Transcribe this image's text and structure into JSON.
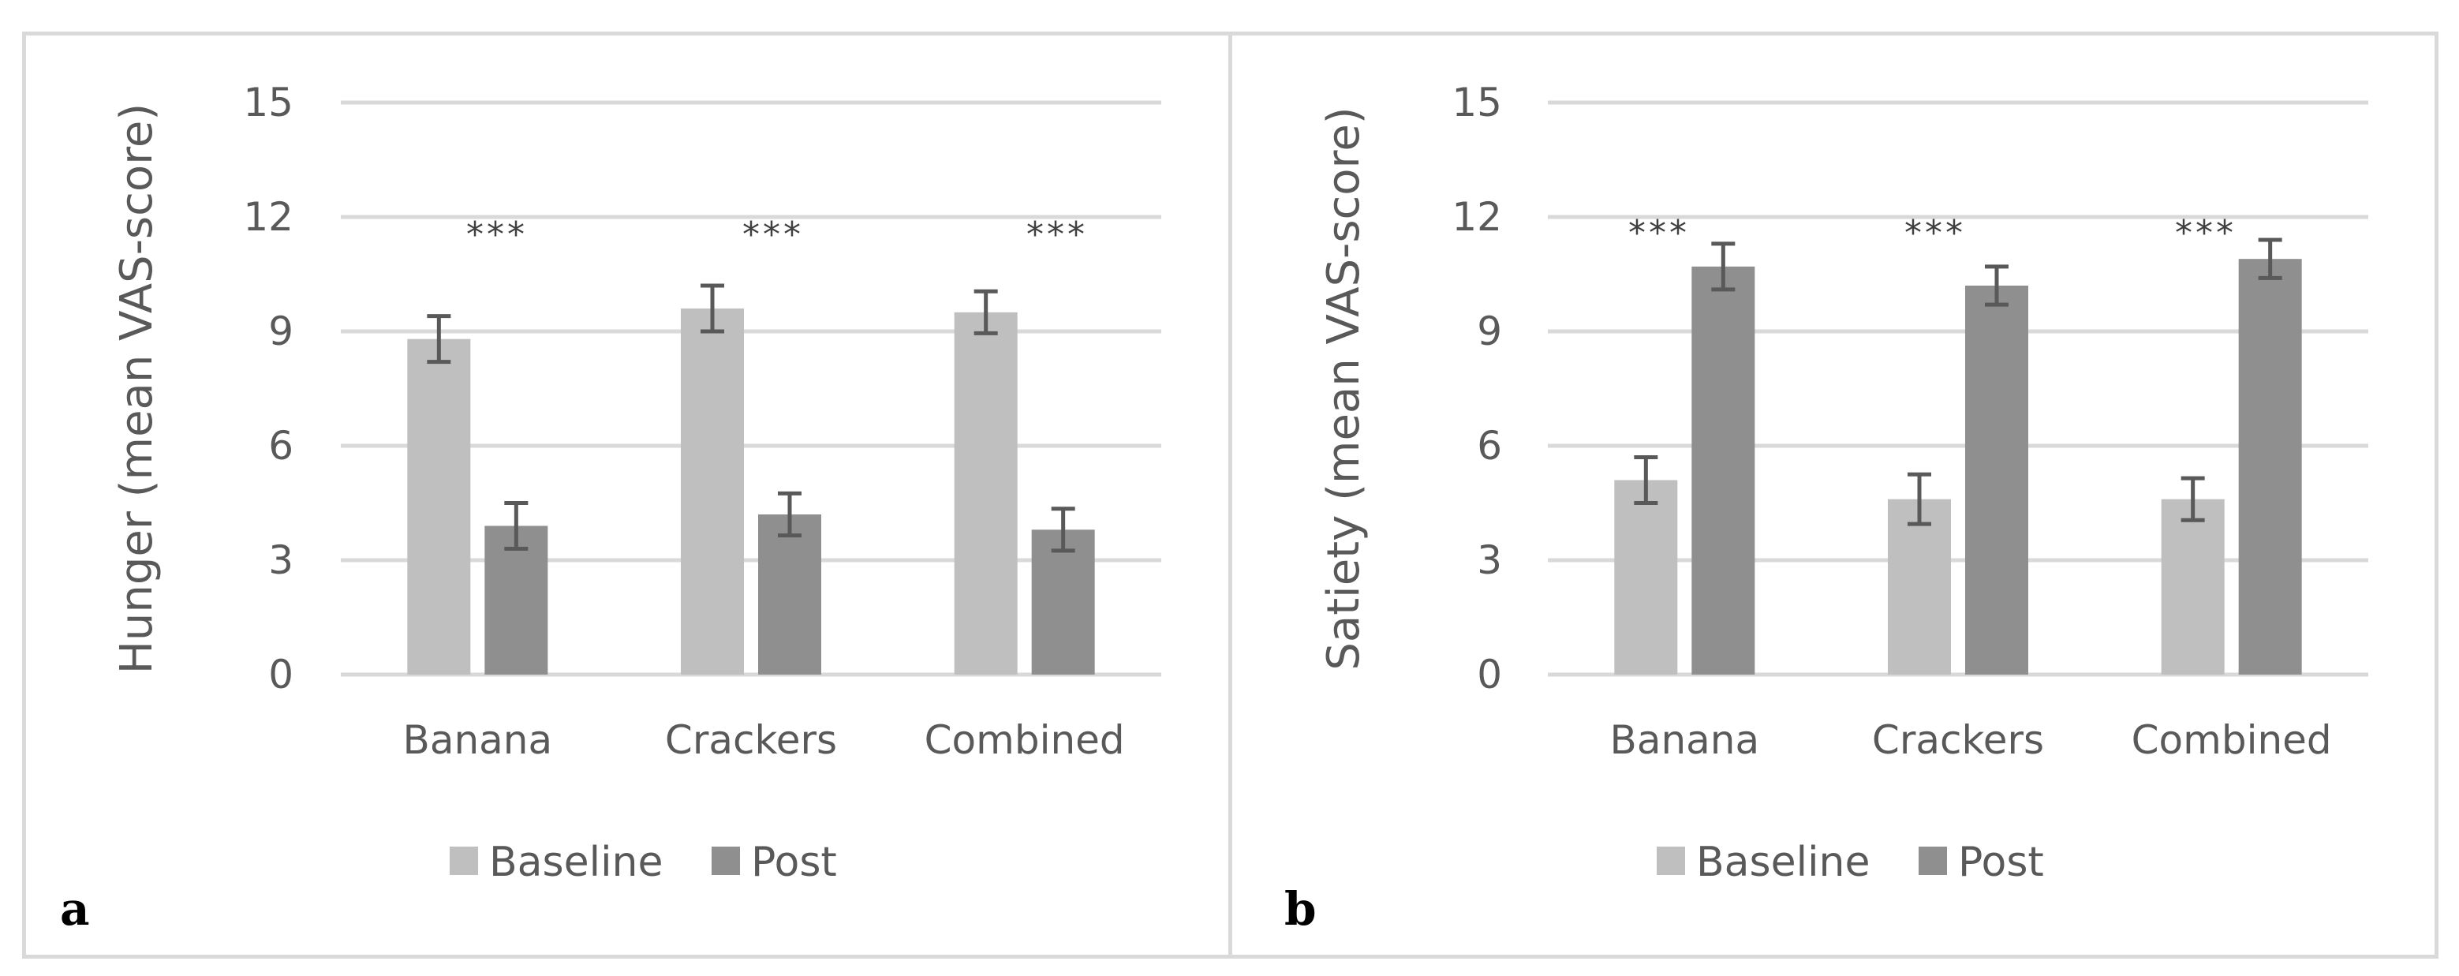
{
  "chart_data": [
    {
      "type": "bar",
      "panel_label": "a",
      "ylabel": "Hunger (mean VAS-score)",
      "ylim": [
        0,
        15
      ],
      "yticks": [
        "0",
        "3",
        "6",
        "9",
        "12",
        "15"
      ],
      "grid": true,
      "categories": [
        "Banana",
        "Crackers",
        "Combined"
      ],
      "series": [
        {
          "name": "Baseline",
          "color": "#bfbfbf",
          "values": [
            8.8,
            9.6,
            9.5
          ],
          "errors": [
            0.6,
            0.6,
            0.55
          ]
        },
        {
          "name": "Post",
          "color": "#8f8f8f",
          "values": [
            3.9,
            4.2,
            3.8
          ],
          "errors": [
            0.6,
            0.55,
            0.55
          ]
        }
      ],
      "significance": [
        "***",
        "***",
        "***"
      ],
      "legend": [
        "Baseline",
        "Post"
      ],
      "legend_position": "bottom"
    },
    {
      "type": "bar",
      "panel_label": "b",
      "ylabel": "Satiety (mean VAS-score)",
      "ylim": [
        0,
        15
      ],
      "yticks": [
        "0",
        "3",
        "6",
        "9",
        "12",
        "15"
      ],
      "grid": true,
      "categories": [
        "Banana",
        "Crackers",
        "Combined"
      ],
      "series": [
        {
          "name": "Baseline",
          "color": "#bfbfbf",
          "values": [
            5.1,
            4.6,
            4.6
          ],
          "errors": [
            0.6,
            0.65,
            0.55
          ]
        },
        {
          "name": "Post",
          "color": "#8f8f8f",
          "values": [
            10.7,
            10.2,
            10.9
          ],
          "errors": [
            0.6,
            0.5,
            0.5
          ]
        }
      ],
      "significance": [
        "***",
        "***",
        "***"
      ],
      "legend": [
        "Baseline",
        "Post"
      ],
      "legend_position": "bottom"
    }
  ]
}
